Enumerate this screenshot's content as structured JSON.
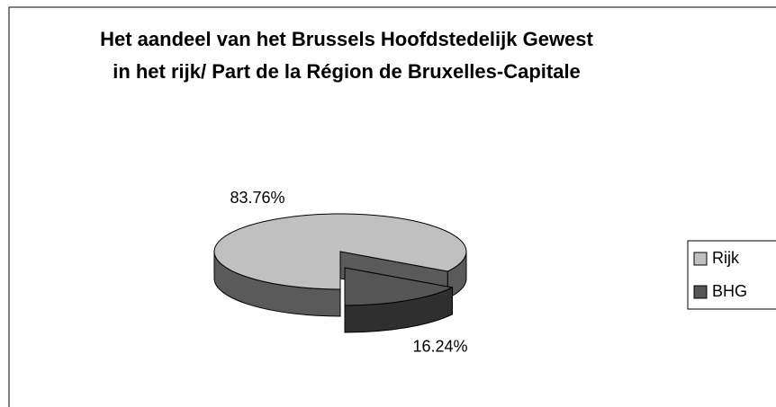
{
  "chart_data": {
    "type": "pie",
    "title": "Het aandeel van het Brussels Hoofdstedelijk Gewest in het rijk/ Part de la Région de Bruxelles-Capitale",
    "categories": [
      "Rijk",
      "BHG"
    ],
    "series": [
      {
        "values": [
          83.76,
          16.24
        ],
        "value_labels": [
          "83.76%",
          "16.24%"
        ],
        "colors": [
          "#c0c0c0",
          "#555555"
        ]
      }
    ],
    "legend": "right",
    "exploded": [
      false,
      true
    ],
    "three_d": true
  }
}
